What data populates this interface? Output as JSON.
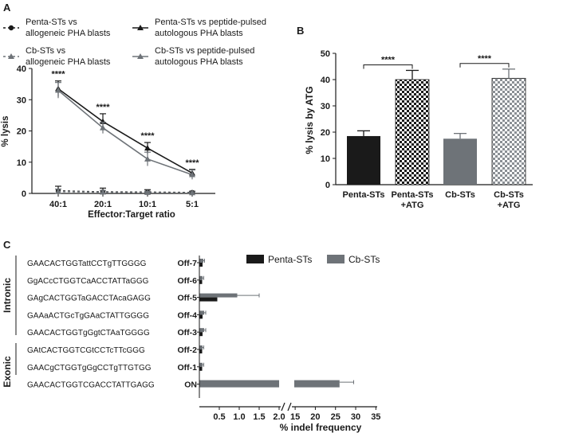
{
  "colors": {
    "penta": "#1a1a1a",
    "cb": "#6e7378",
    "ink": "#1a1a1a"
  },
  "chart_data": [
    {
      "panel": "A",
      "type": "line",
      "xlabel": "Effector:Target ratio",
      "ylabel": "% lysis",
      "categories": [
        "40:1",
        "20:1",
        "10:1",
        "5:1"
      ],
      "ylim": [
        0,
        40
      ],
      "yticks": [
        "0",
        "10",
        "20",
        "30",
        "40"
      ],
      "significance": [
        "****",
        "****",
        "****",
        "****"
      ],
      "legend": [
        "Penta-STs vs allogeneic PHA blasts",
        "Penta-STs vs peptide-pulsed autologous PHA blasts",
        "Cb-STs vs allogeneic PHA blasts",
        "Cb-STs vs peptide-pulsed autologous PHA blasts"
      ],
      "legend_lines": {
        "s1": [
          "Penta-STs vs",
          "allogeneic PHA blasts"
        ],
        "s2": [
          "Penta-STs vs peptide-pulsed",
          "autologous PHA blasts"
        ],
        "s3": [
          "Cb-STs vs",
          "allogeneic PHA blasts"
        ],
        "s4": [
          "Cb-STs vs peptide-pulsed",
          "autologous PHA blasts"
        ]
      },
      "series": [
        {
          "key": "s1",
          "values": [
            0.8,
            0.5,
            0.4,
            0.3
          ],
          "errors": [
            1.5,
            1.2,
            0.8,
            0.4
          ]
        },
        {
          "key": "s2",
          "values": [
            33.5,
            23.0,
            14.5,
            6.5
          ],
          "errors": [
            2.5,
            2.5,
            1.8,
            1.2
          ]
        },
        {
          "key": "s3",
          "values": [
            0.6,
            0.4,
            0.3,
            0.2
          ],
          "errors": [
            0.8,
            0.6,
            0.4,
            0.3
          ]
        },
        {
          "key": "s4",
          "values": [
            33.0,
            21.0,
            11.0,
            6.0
          ],
          "errors": [
            2.5,
            1.8,
            2.2,
            1.5
          ]
        }
      ]
    },
    {
      "panel": "B",
      "type": "bar",
      "ylabel": "% lysis by ATG",
      "categories": [
        [
          "Penta-STs"
        ],
        [
          "Penta-STs",
          "+ATG"
        ],
        [
          "Cb-STs"
        ],
        [
          "Cb-STs",
          "+ATG"
        ]
      ],
      "values": [
        18.5,
        40.0,
        17.5,
        40.5
      ],
      "errors": [
        2.0,
        3.5,
        2.0,
        3.5
      ],
      "ylim": [
        0,
        50
      ],
      "yticks": [
        "0",
        "10",
        "20",
        "30",
        "40",
        "50"
      ],
      "significance": [
        {
          "between": [
            0,
            1
          ],
          "label": "****"
        },
        {
          "between": [
            2,
            3
          ],
          "label": "****"
        }
      ]
    },
    {
      "panel": "C",
      "type": "bar",
      "orientation": "horizontal",
      "xlabel": "% indel frequency",
      "legend": [
        "Penta-STs",
        "Cb-STs"
      ],
      "xticks_left": [
        "0.5",
        "1.0",
        "1.5",
        "2.0"
      ],
      "xticks_right": [
        "15",
        "20",
        "25",
        "30",
        "35"
      ],
      "rows": [
        {
          "seq": "GAACACTGGTattCCTgTTGGGG",
          "label": "Off-7",
          "penta": 0.08,
          "cb": 0.1,
          "cb_err": 0.03
        },
        {
          "seq": "GgACcCTGGTCaACCTATTaGGG",
          "label": "Off-6",
          "penta": 0.07,
          "cb": 0.08,
          "cb_err": 0.03
        },
        {
          "seq": "GAgCACTGGTaGACCTAcaGAGG",
          "label": "Off-5",
          "penta": 0.45,
          "cb": 0.95,
          "cb_err": 0.55
        },
        {
          "seq": "GAAaACTGcTgGAaCTATTGGGG",
          "label": "Off-4",
          "penta": 0.08,
          "cb": 0.12,
          "cb_err": 0.04
        },
        {
          "seq": "GAACACTGGTgGgtCTAaTGGGG",
          "label": "Off-3",
          "penta": 0.08,
          "cb": 0.12,
          "cb_err": 0.04
        },
        {
          "seq": "GAtCACTGGTCGtCCTcTTcGGG",
          "label": "Off-2",
          "penta": 0.07,
          "cb": 0.08,
          "cb_err": 0.03
        },
        {
          "seq": "GAACgCTGGTgGgCCTgTTGTGG",
          "label": "Off-1",
          "penta": 0.07,
          "cb": 0.08,
          "cb_err": 0.03
        },
        {
          "seq": "GAACACTGGTCGACCTATTGAGG",
          "label": "ON",
          "penta": 0,
          "cb": 26.0,
          "cb_err": 3.5
        }
      ],
      "groups": [
        "Intronic",
        "Exonic"
      ]
    }
  ],
  "panel_labels": [
    "A",
    "B",
    "C"
  ]
}
